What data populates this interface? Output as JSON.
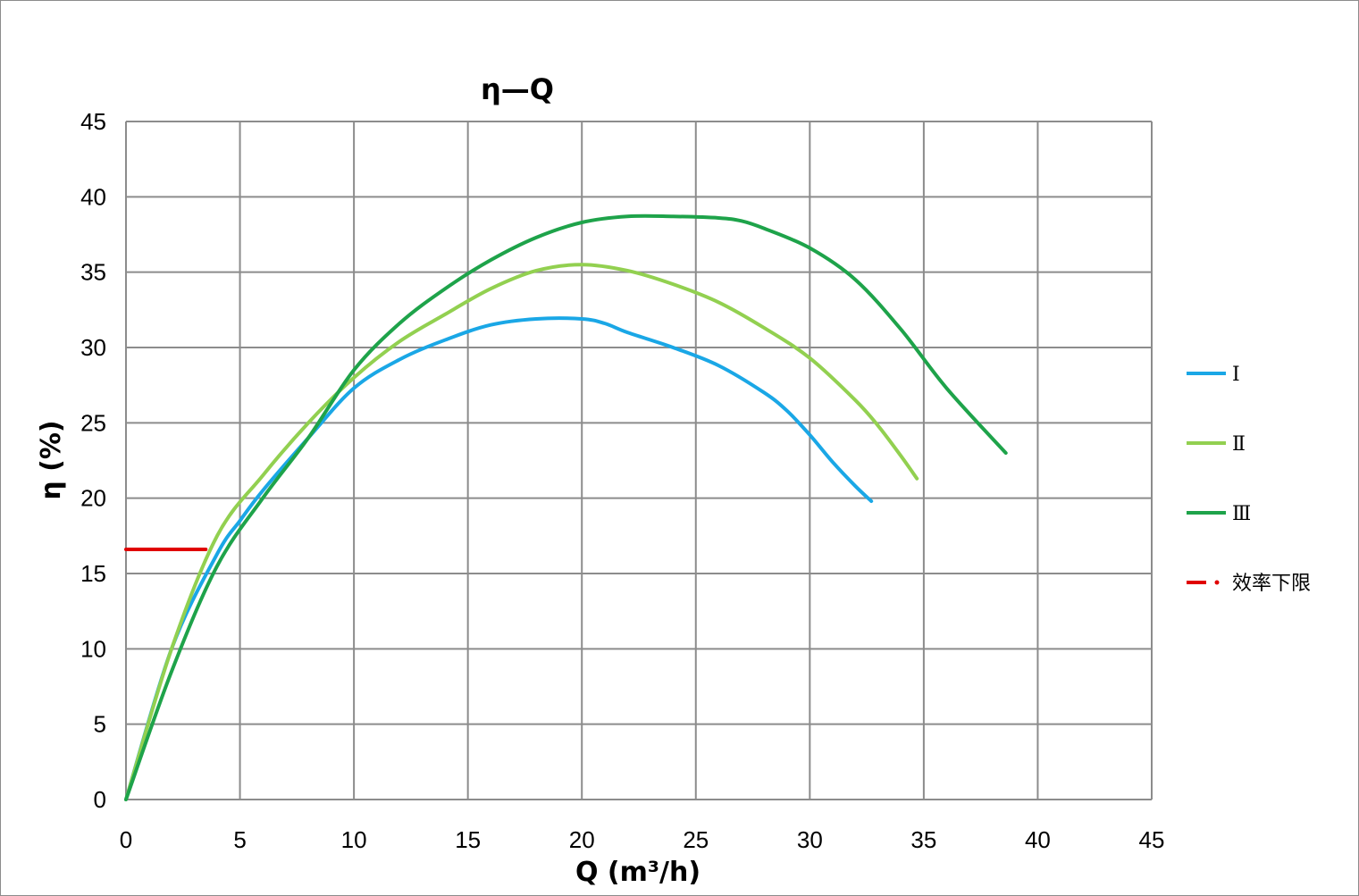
{
  "chart_data": {
    "type": "line",
    "title": "η—Q",
    "xlabel": "Q (m³/h)",
    "ylabel": "η (%)",
    "xlim": [
      0,
      45
    ],
    "ylim": [
      0,
      45
    ],
    "xticks": [
      0,
      5,
      10,
      15,
      20,
      25,
      30,
      35,
      40,
      45
    ],
    "yticks": [
      0,
      5,
      10,
      15,
      20,
      25,
      30,
      35,
      40,
      45
    ],
    "grid": true,
    "legend_position": "right",
    "series": [
      {
        "name": "Ⅰ",
        "color": "#1aa7e6",
        "style": "solid",
        "x": [
          0,
          2,
          4,
          5,
          6,
          8,
          10,
          12,
          14,
          16,
          18,
          20,
          21,
          22,
          24,
          26,
          28,
          29,
          30,
          31,
          32,
          32.7
        ],
        "y": [
          0,
          10,
          16.3,
          18.5,
          20.5,
          24,
          27.3,
          29.2,
          30.5,
          31.5,
          31.9,
          31.9,
          31.6,
          31,
          30,
          28.8,
          27,
          25.8,
          24.2,
          22.4,
          20.8,
          19.8
        ]
      },
      {
        "name": "Ⅱ",
        "color": "#92d050",
        "style": "solid",
        "x": [
          0,
          2,
          4,
          6,
          8,
          10,
          12,
          14,
          16,
          18,
          20,
          22,
          24,
          26,
          28,
          30,
          32,
          33,
          34,
          34.7
        ],
        "y": [
          0,
          10,
          17.5,
          21.5,
          25,
          28,
          30.4,
          32.2,
          33.9,
          35.1,
          35.5,
          35.1,
          34.2,
          33,
          31.3,
          29.3,
          26.5,
          24.8,
          22.8,
          21.3
        ]
      },
      {
        "name": "Ⅲ",
        "color": "#1ea34a",
        "style": "solid",
        "x": [
          0,
          2,
          4,
          6,
          8,
          10,
          12,
          14,
          16,
          18,
          20,
          22,
          24,
          26,
          27,
          28,
          30,
          32,
          34,
          36,
          38.6
        ],
        "y": [
          0,
          8.5,
          15.5,
          20,
          24,
          28.5,
          31.6,
          33.9,
          35.8,
          37.3,
          38.3,
          38.7,
          38.7,
          38.6,
          38.4,
          37.9,
          36.6,
          34.5,
          31.2,
          27.3,
          23
        ]
      },
      {
        "name": "效率下限",
        "color": "#e00000",
        "style": "dash-dot",
        "x": [
          0,
          3.5
        ],
        "y": [
          16.6,
          16.6
        ]
      }
    ]
  }
}
